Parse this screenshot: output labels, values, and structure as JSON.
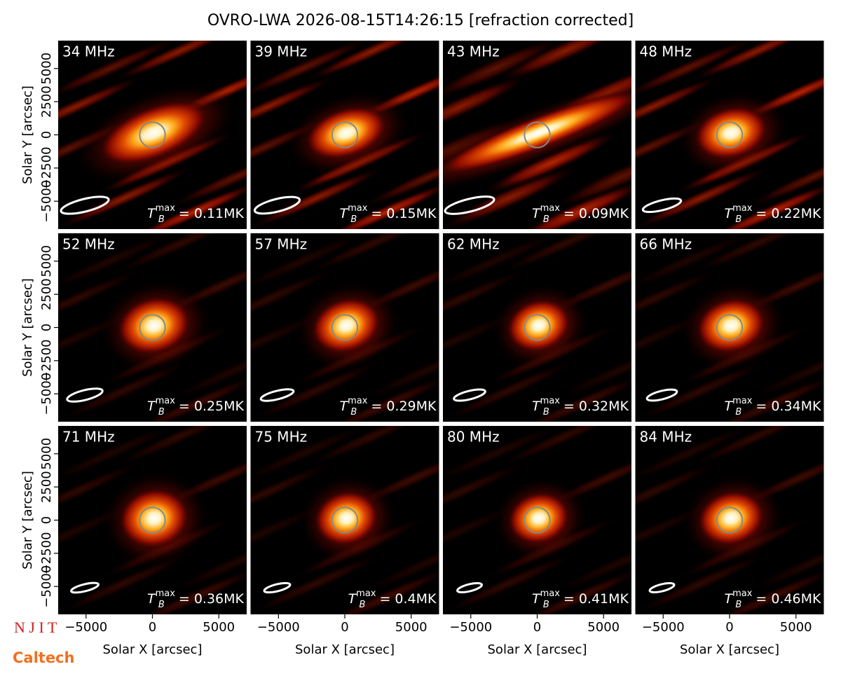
{
  "title": "OVRO-LWA 2026-08-15T14:26:15 [refraction corrected]",
  "logos": [
    "N J I T",
    "Caltech"
  ],
  "chart_data": [
    {
      "type": "image",
      "title": "34 MHz",
      "annotation": {
        "symbol": "T",
        "sub": "B",
        "sup": "max",
        "text": " = 0.11MK"
      },
      "xlim": [
        -7100,
        7100
      ],
      "ylim": [
        -7100,
        7100
      ],
      "ylabel": "Solar Y [arcsec]",
      "yticks": [
        {
          "value": -5000,
          "label": "−5000"
        },
        {
          "value": -2500,
          "label": "−2500"
        },
        0,
        2500,
        5000
      ]
    },
    {
      "type": "image",
      "title": "39 MHz",
      "annotation": {
        "symbol": "T",
        "sub": "B",
        "sup": "max",
        "text": " = 0.15MK"
      },
      "xlim": [
        -7100,
        7100
      ],
      "ylim": [
        -7100,
        7100
      ]
    },
    {
      "type": "image",
      "title": "43 MHz",
      "annotation": {
        "symbol": "T",
        "sub": "B",
        "sup": "max",
        "text": " = 0.09MK"
      },
      "xlim": [
        -7100,
        7100
      ],
      "ylim": [
        -7100,
        7100
      ]
    },
    {
      "type": "image",
      "title": "48 MHz",
      "annotation": {
        "symbol": "T",
        "sub": "B",
        "sup": "max",
        "text": " = 0.22MK"
      },
      "xlim": [
        -7100,
        7100
      ],
      "ylim": [
        -7100,
        7100
      ]
    },
    {
      "type": "image",
      "title": "52 MHz",
      "annotation": {
        "symbol": "T",
        "sub": "B",
        "sup": "max",
        "text": " = 0.25MK"
      },
      "xlim": [
        -7100,
        7100
      ],
      "ylim": [
        -7100,
        7100
      ],
      "ylabel": "Solar Y [arcsec]",
      "yticks": [
        {
          "value": -5000,
          "label": "−5000"
        },
        {
          "value": -2500,
          "label": "−2500"
        },
        0,
        2500,
        5000
      ]
    },
    {
      "type": "image",
      "title": "57 MHz",
      "annotation": {
        "symbol": "T",
        "sub": "B",
        "sup": "max",
        "text": " = 0.29MK"
      },
      "xlim": [
        -7100,
        7100
      ],
      "ylim": [
        -7100,
        7100
      ]
    },
    {
      "type": "image",
      "title": "62 MHz",
      "annotation": {
        "symbol": "T",
        "sub": "B",
        "sup": "max",
        "text": " = 0.32MK"
      },
      "xlim": [
        -7100,
        7100
      ],
      "ylim": [
        -7100,
        7100
      ]
    },
    {
      "type": "image",
      "title": "66 MHz",
      "annotation": {
        "symbol": "T",
        "sub": "B",
        "sup": "max",
        "text": " = 0.34MK"
      },
      "xlim": [
        -7100,
        7100
      ],
      "ylim": [
        -7100,
        7100
      ]
    },
    {
      "type": "image",
      "title": "71 MHz",
      "annotation": {
        "symbol": "T",
        "sub": "B",
        "sup": "max",
        "text": " = 0.36MK"
      },
      "xlim": [
        -7100,
        7100
      ],
      "ylim": [
        -7100,
        7100
      ],
      "ylabel": "Solar Y [arcsec]",
      "yticks": [
        {
          "value": -5000,
          "label": "−5000"
        },
        {
          "value": -2500,
          "label": "−2500"
        },
        0,
        2500,
        5000
      ],
      "xlabel": "Solar X [arcsec]",
      "xticks": [
        {
          "value": -5000,
          "label": "−5000"
        },
        0,
        5000
      ]
    },
    {
      "type": "image",
      "title": "75 MHz",
      "annotation": {
        "symbol": "T",
        "sub": "B",
        "sup": "max",
        "text": " = 0.4MK"
      },
      "xlim": [
        -7100,
        7100
      ],
      "ylim": [
        -7100,
        7100
      ],
      "xlabel": "Solar X [arcsec]",
      "xticks": [
        {
          "value": -5000,
          "label": "−5000"
        },
        0,
        5000
      ]
    },
    {
      "type": "image",
      "title": "80 MHz",
      "annotation": {
        "symbol": "T",
        "sub": "B",
        "sup": "max",
        "text": " = 0.41MK"
      },
      "xlim": [
        -7100,
        7100
      ],
      "ylim": [
        -7100,
        7100
      ],
      "xlabel": "Solar X [arcsec]",
      "xticks": [
        {
          "value": -5000,
          "label": "−5000"
        },
        0,
        5000
      ]
    },
    {
      "type": "image",
      "title": "84 MHz",
      "annotation": {
        "symbol": "T",
        "sub": "B",
        "sup": "max",
        "text": " = 0.46MK"
      },
      "xlim": [
        -7100,
        7100
      ],
      "ylim": [
        -7100,
        7100
      ],
      "xlabel": "Solar X [arcsec]",
      "xticks": [
        {
          "value": -5000,
          "label": "−5000"
        },
        0,
        5000
      ]
    }
  ]
}
